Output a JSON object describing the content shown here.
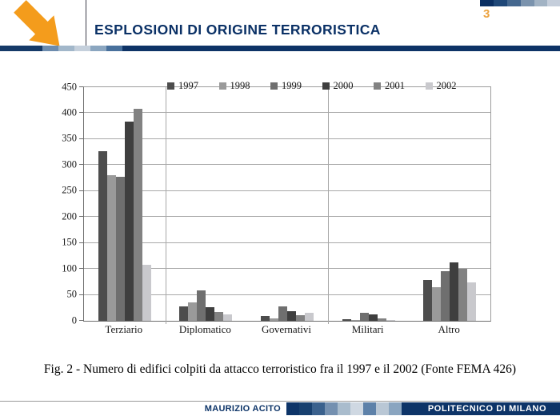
{
  "slide": {
    "title": "ESPLOSIONI DI ORIGINE TERRORISTICA",
    "page_number": "3",
    "caption": "Fig. 2 - Numero di edifici colpiti da attacco terroristico fra il 1997 e il 2002 (Fonte FEMA 426)"
  },
  "footer": {
    "author": "MAURIZIO ACITO",
    "institution": "POLITECNICO DI MILANO"
  },
  "icons": {
    "logo": "arrow-down-right-icon"
  },
  "colors": {
    "brand_navy": "#0d3468",
    "accent_orange": "#f49c1c",
    "gridline_gray": "#a8a8a8"
  },
  "chart_data": {
    "type": "bar",
    "title": "",
    "xlabel": "",
    "ylabel": "",
    "categories": [
      "Terziario",
      "Diplomatico",
      "Governativi",
      "Militari",
      "Altro"
    ],
    "series": [
      {
        "name": "1997",
        "color": "#4d4d4d",
        "values": [
          326,
          28,
          10,
          3,
          78
        ]
      },
      {
        "name": "1998",
        "color": "#9a9a9a",
        "values": [
          281,
          35,
          5,
          1,
          65
        ]
      },
      {
        "name": "1999",
        "color": "#6f6f6f",
        "values": [
          278,
          58,
          27,
          16,
          95
        ]
      },
      {
        "name": "2000",
        "color": "#3f3f3f",
        "values": [
          384,
          26,
          18,
          12,
          113
        ]
      },
      {
        "name": "2001",
        "color": "#828282",
        "values": [
          409,
          17,
          11,
          4,
          100
        ]
      },
      {
        "name": "2002",
        "color": "#c9c9cd",
        "values": [
          108,
          13,
          16,
          1,
          74
        ]
      }
    ],
    "ylim": [
      0,
      450
    ],
    "yticks": [
      0,
      50,
      100,
      150,
      200,
      250,
      300,
      350,
      400,
      450
    ],
    "grid": true,
    "legend_position": "top-inside",
    "vertical_gridlines_after_category": [
      1,
      3
    ]
  }
}
